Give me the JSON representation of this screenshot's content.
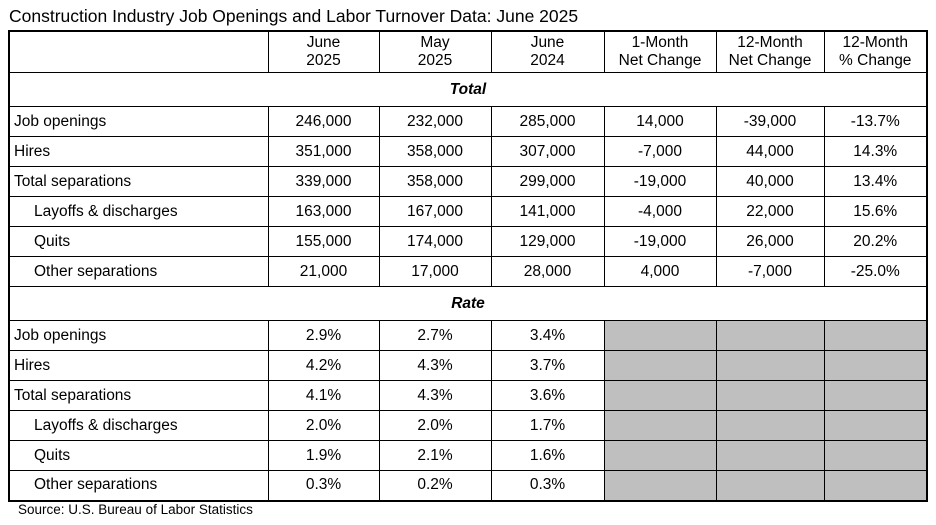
{
  "title": "Construction Industry Job Openings and Labor Turnover Data: June 2025",
  "source": "Source: U.S. Bureau of Labor Statistics",
  "colors": {
    "shaded_cell": "#bfbfbf",
    "border": "#000000",
    "background": "#ffffff"
  },
  "columns": [
    {
      "line1": "",
      "line2": ""
    },
    {
      "line1": "June",
      "line2": "2025"
    },
    {
      "line1": "May",
      "line2": "2025"
    },
    {
      "line1": "June",
      "line2": "2024"
    },
    {
      "line1": "1-Month",
      "line2": "Net Change"
    },
    {
      "line1": "12-Month",
      "line2": "Net Change"
    },
    {
      "line1": "12-Month",
      "line2": "% Change"
    }
  ],
  "sections": [
    {
      "label": "Total",
      "rows": [
        {
          "label": "Job openings",
          "indent": false,
          "values": [
            "246,000",
            "232,000",
            "285,000",
            "14,000",
            "-39,000",
            "-13.7%"
          ]
        },
        {
          "label": "Hires",
          "indent": false,
          "values": [
            "351,000",
            "358,000",
            "307,000",
            "-7,000",
            "44,000",
            "14.3%"
          ]
        },
        {
          "label": "Total separations",
          "indent": false,
          "values": [
            "339,000",
            "358,000",
            "299,000",
            "-19,000",
            "40,000",
            "13.4%"
          ]
        },
        {
          "label": "Layoffs & discharges",
          "indent": true,
          "values": [
            "163,000",
            "167,000",
            "141,000",
            "-4,000",
            "22,000",
            "15.6%"
          ]
        },
        {
          "label": "Quits",
          "indent": true,
          "values": [
            "155,000",
            "174,000",
            "129,000",
            "-19,000",
            "26,000",
            "20.2%"
          ]
        },
        {
          "label": "Other separations",
          "indent": true,
          "values": [
            "21,000",
            "17,000",
            "28,000",
            "4,000",
            "-7,000",
            "-25.0%"
          ]
        }
      ]
    },
    {
      "label": "Rate",
      "rows": [
        {
          "label": "Job openings",
          "indent": false,
          "values": [
            "2.9%",
            "2.7%",
            "3.4%",
            null,
            null,
            null
          ]
        },
        {
          "label": "Hires",
          "indent": false,
          "values": [
            "4.2%",
            "4.3%",
            "3.7%",
            null,
            null,
            null
          ]
        },
        {
          "label": "Total separations",
          "indent": false,
          "values": [
            "4.1%",
            "4.3%",
            "3.6%",
            null,
            null,
            null
          ]
        },
        {
          "label": "Layoffs & discharges",
          "indent": true,
          "values": [
            "2.0%",
            "2.0%",
            "1.7%",
            null,
            null,
            null
          ]
        },
        {
          "label": "Quits",
          "indent": true,
          "values": [
            "1.9%",
            "2.1%",
            "1.6%",
            null,
            null,
            null
          ]
        },
        {
          "label": "Other separations",
          "indent": true,
          "values": [
            "0.3%",
            "0.2%",
            "0.3%",
            null,
            null,
            null
          ]
        }
      ]
    }
  ]
}
